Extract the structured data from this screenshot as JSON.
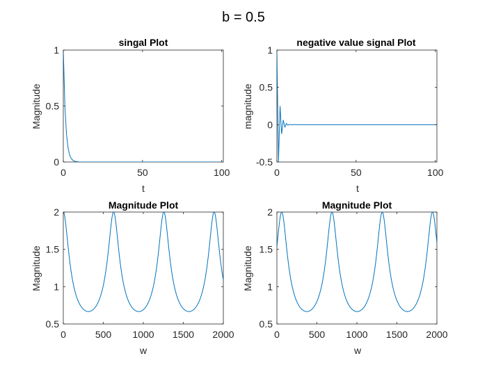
{
  "figure_title": "b = 0.5",
  "line_color": "#0072bd",
  "chart_data": [
    {
      "type": "line",
      "title": "singal Plot",
      "xlabel": "t",
      "ylabel": "Magnitude",
      "xlim": [
        0,
        101
      ],
      "ylim": [
        0,
        1
      ],
      "xticks": [
        0,
        50,
        100
      ],
      "yticks": [
        0,
        0.5,
        1
      ],
      "series": [
        {
          "x": [
            0,
            1,
            2,
            3,
            4,
            5,
            6,
            7,
            8,
            9,
            10,
            12,
            15,
            20,
            30,
            50,
            75,
            101
          ],
          "y": [
            1,
            0.5,
            0.25,
            0.125,
            0.0625,
            0.03125,
            0.015625,
            0.0078,
            0.0039,
            0.002,
            0.001,
            0.0002,
            0,
            0,
            0,
            0,
            0,
            0
          ]
        }
      ]
    },
    {
      "type": "line",
      "title": "negative value signal Plot",
      "xlabel": "t",
      "ylabel": "magnitude",
      "xlim": [
        0,
        101
      ],
      "ylim": [
        -0.5,
        1
      ],
      "xticks": [
        0,
        50,
        100
      ],
      "yticks": [
        -0.5,
        0,
        0.5,
        1
      ],
      "series": [
        {
          "x": [
            0,
            1,
            2,
            3,
            4,
            5,
            6,
            7,
            8,
            9,
            10,
            12,
            15,
            20,
            30,
            50,
            75,
            101
          ],
          "y": [
            1,
            -0.5,
            0.25,
            -0.125,
            0.0625,
            -0.03125,
            0.015625,
            -0.0078,
            0.0039,
            -0.002,
            0.001,
            0.0002,
            0,
            0,
            0,
            0,
            0,
            0
          ]
        }
      ]
    },
    {
      "type": "line",
      "title": "Magnitude Plot",
      "xlabel": "w",
      "ylabel": "Magnitude",
      "xlim": [
        0,
        2000
      ],
      "ylim": [
        0.5,
        2
      ],
      "xticks": [
        0,
        500,
        1000,
        1500,
        2000
      ],
      "yticks": [
        0.5,
        1,
        1.5,
        2
      ],
      "series": [
        {
          "function": "1/sqrt(1.25 - cos(w/100))",
          "x_start": 0,
          "x_end": 2000,
          "x_step": 5
        }
      ]
    },
    {
      "type": "line",
      "title": "Magnitude Plot",
      "xlabel": "w",
      "ylabel": "Magnitude",
      "xlim": [
        0,
        2000
      ],
      "ylim": [
        0.5,
        2
      ],
      "xticks": [
        0,
        500,
        1000,
        1500,
        2000
      ],
      "yticks": [
        0.5,
        1,
        1.5,
        2
      ],
      "series": [
        {
          "function": "1/sqrt(1.25 - cos(w/100 - 0.6))",
          "x_start": 0,
          "x_end": 2000,
          "x_step": 5
        }
      ]
    }
  ]
}
